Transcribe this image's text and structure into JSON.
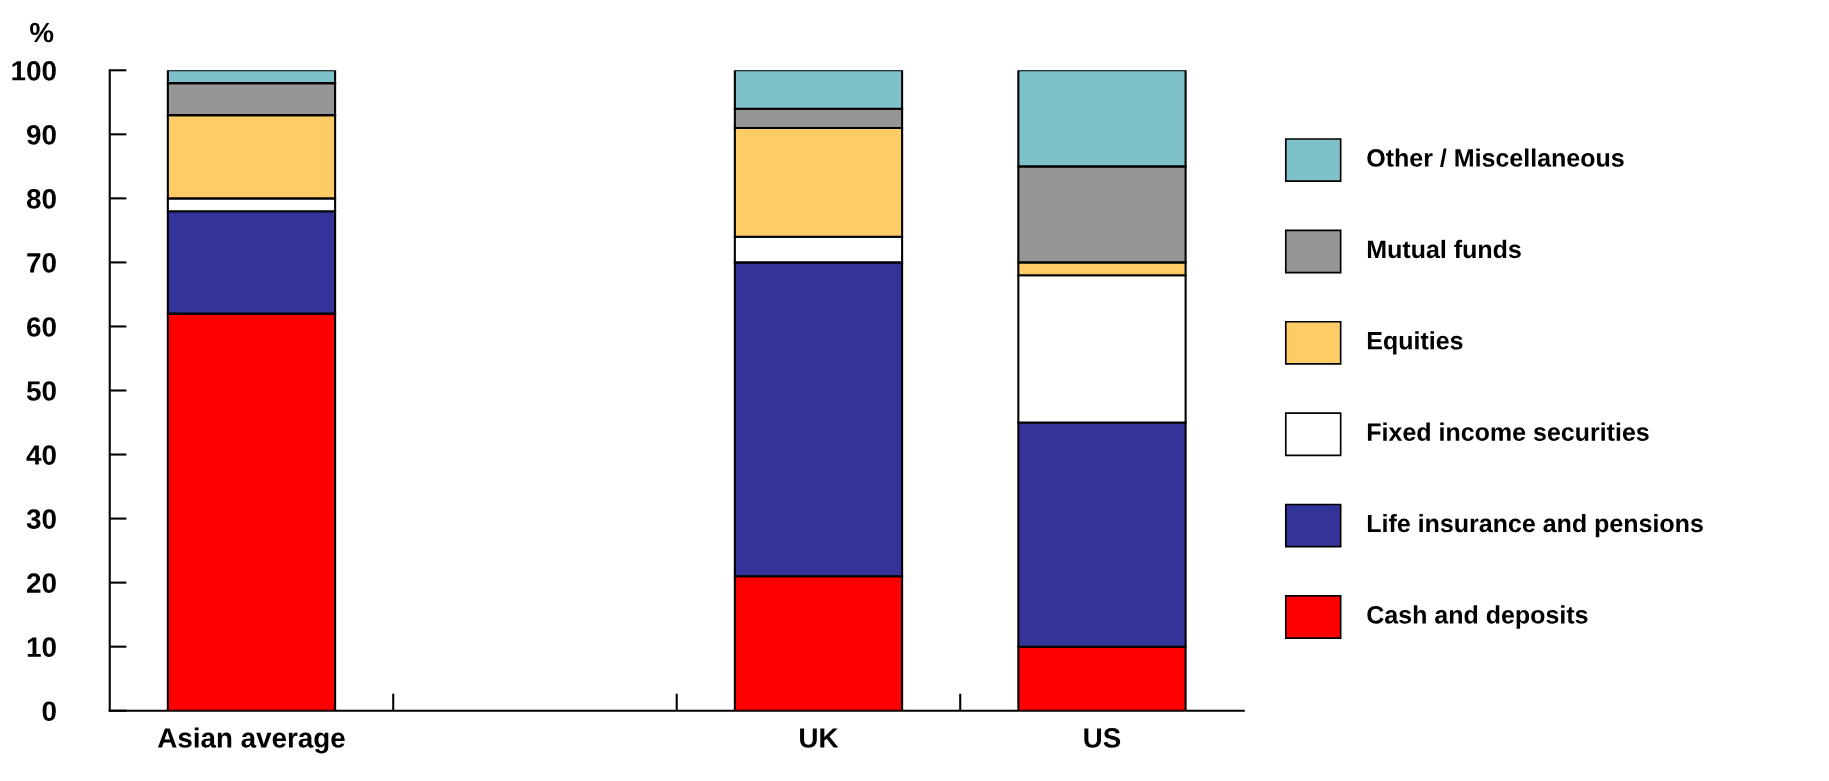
{
  "chart_data": {
    "type": "bar",
    "stacked": true,
    "ylabel": "%",
    "categories": [
      "Asian average",
      null,
      "UK",
      "US"
    ],
    "series": [
      {
        "name": "Cash and deposits",
        "color": "#ff0000",
        "values": [
          62,
          null,
          21,
          10
        ]
      },
      {
        "name": "Life insurance and pensions",
        "color": "#333399",
        "values": [
          16,
          null,
          49,
          35
        ]
      },
      {
        "name": "Fixed income securities",
        "color": "#ffffff",
        "values": [
          2,
          null,
          4,
          23
        ]
      },
      {
        "name": "Equities",
        "color": "#ffcc66",
        "values": [
          13,
          null,
          17,
          2
        ]
      },
      {
        "name": "Mutual funds",
        "color": "#969696",
        "values": [
          5,
          null,
          3,
          15
        ]
      },
      {
        "name": "Other / Miscellaneous",
        "color": "#7fc1c8",
        "values": [
          2,
          null,
          6,
          15
        ]
      }
    ],
    "ylim": [
      0,
      100
    ],
    "yticks": [
      0,
      10,
      20,
      30,
      40,
      50,
      60,
      70,
      80,
      90,
      100
    ],
    "grid": false,
    "legend": "right"
  }
}
